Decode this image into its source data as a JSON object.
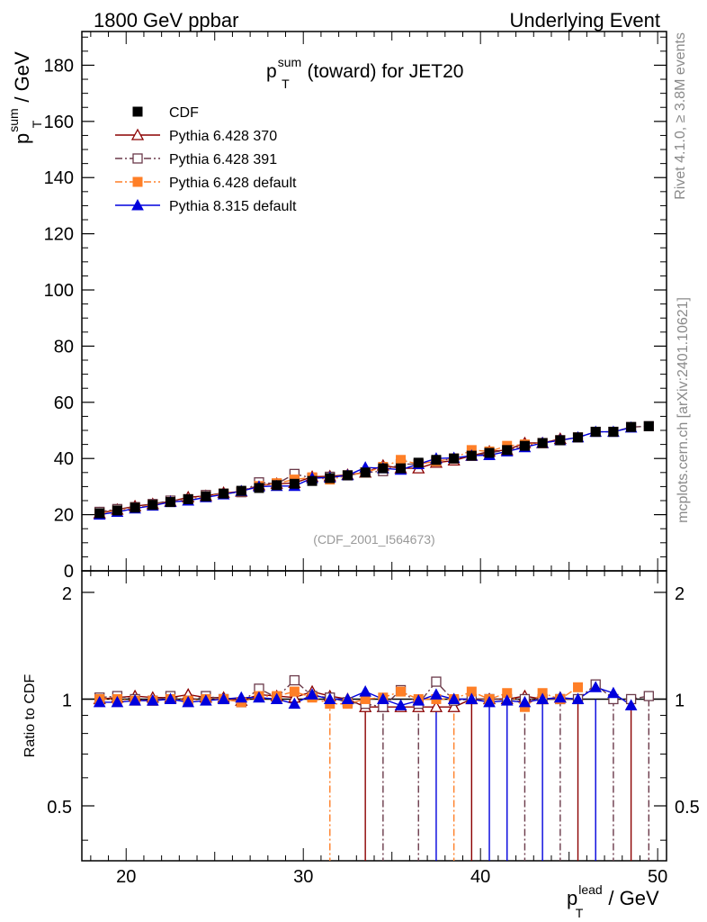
{
  "header": {
    "left": "1800 GeV ppbar",
    "right": "Underlying Event"
  },
  "side_label_top": "Rivet 4.1.0, ≥ 3.8M events",
  "side_label_bottom": "mcplots.cern.ch [arXiv:2401.10621]",
  "watermark": "(CDF_2001_I564673)",
  "chart_data": [
    {
      "type": "scatter",
      "title": "pT sum (toward) for JET20",
      "title_parts": {
        "base": "p",
        "sup": "sum",
        "sub": "T",
        "rest": " (toward) for JET20"
      },
      "ylabel": "pT sum / GeV",
      "ylabel_parts": {
        "base": "p",
        "sup": "sum",
        "sub": "T",
        "rest": " / GeV"
      },
      "xlim": [
        17.5,
        50.5
      ],
      "ylim": [
        0,
        192
      ],
      "yticks": [
        {
          "value": 0,
          "label": "0"
        },
        {
          "value": 20,
          "label": "20"
        },
        {
          "value": 40,
          "label": "40"
        },
        {
          "value": 60,
          "label": "60"
        },
        {
          "value": 80,
          "label": "80"
        },
        {
          "value": 100,
          "label": "100"
        },
        {
          "value": 120,
          "label": "120"
        },
        {
          "value": 140,
          "label": "140"
        },
        {
          "value": 160,
          "label": "160"
        },
        {
          "value": 180,
          "label": "180"
        }
      ],
      "legend_position": "top-left",
      "series": [
        {
          "name": "CDF",
          "color": "#000000",
          "marker": "square-filled",
          "line": "none",
          "x": [
            18.5,
            19.5,
            20.5,
            21.5,
            22.5,
            23.5,
            24.5,
            25.5,
            26.5,
            27.5,
            28.5,
            29.5,
            30.5,
            31.5,
            32.5,
            33.5,
            34.5,
            35.5,
            36.5,
            37.5,
            38.5,
            39.5,
            40.5,
            41.5,
            42.5,
            43.5,
            44.5,
            45.5,
            46.5,
            47.5,
            48.5,
            49.5
          ],
          "values": [
            20.5,
            21.5,
            22.5,
            23.5,
            24.5,
            25.5,
            26.5,
            27.5,
            28.5,
            29.5,
            30.5,
            31,
            32,
            33,
            34,
            35,
            36.5,
            36.5,
            38.5,
            39.5,
            40,
            41,
            42,
            43,
            44.5,
            45.5,
            46.5,
            47.5,
            49.5,
            49.5,
            51.2,
            51.5
          ]
        },
        {
          "name": "Pythia 6.428 370",
          "color": "#8b0000",
          "marker": "triangle-open",
          "line": "solid",
          "x": [
            18.5,
            19.5,
            20.5,
            21.5,
            22.5,
            23.5,
            24.5,
            25.5,
            26.5,
            27.5,
            28.5,
            29.5,
            30.5,
            31.5,
            32.5,
            33.5,
            34.5,
            35.5,
            36.5,
            37.5,
            38.5,
            39.5,
            40.5,
            41.5,
            42.5,
            43.5,
            44.5
          ],
          "values": [
            20.5,
            21.8,
            23,
            23.8,
            24.7,
            26.2,
            26.7,
            27.8,
            28.2,
            30.5,
            31,
            31.3,
            33.5,
            33.7,
            34.2,
            35,
            37.5,
            36.5,
            36.5,
            38.5,
            39.3,
            41,
            42.5,
            43,
            45.5,
            45.5,
            47
          ],
          "ratio": [
            1.0,
            1.01,
            1.02,
            1.01,
            1.01,
            1.03,
            1.01,
            1.01,
            0.99,
            1.03,
            1.02,
            1.01,
            1.05,
            1.02,
            1.0,
            0.95,
            0.95,
            0.95,
            0.95,
            0.95,
            0.95,
            1.0,
            1.0,
            1.0,
            1.02,
            1.0,
            1.01
          ]
        },
        {
          "name": "Pythia 6.428 391",
          "color": "#6b3a4a",
          "marker": "square-open",
          "line": "dashdot",
          "x": [
            18.5,
            19.5,
            20.5,
            21.5,
            22.5,
            23.5,
            24.5,
            25.5,
            26.5,
            27.5,
            28.5,
            29.5,
            30.5,
            31.5,
            32.5,
            33.5,
            34.5,
            35.5,
            36.5,
            37.5,
            38.5,
            39.5,
            40.5,
            41.5,
            42.5,
            43.5,
            44.5,
            45.5,
            46.5,
            47.5,
            48.5,
            49.5
          ],
          "values": [
            21,
            22,
            22.7,
            23.8,
            25,
            25.5,
            27,
            27.5,
            28,
            31.5,
            31,
            34.5,
            33,
            33.5,
            34,
            35,
            35.5,
            38,
            38,
            39,
            40,
            41,
            42,
            43,
            44.5,
            45.5,
            46.5,
            47.5,
            49.5,
            49.5,
            51.2,
            51.5
          ],
          "ratio": [
            1.01,
            1.02,
            1.0,
            0.99,
            1.02,
            0.99,
            1.02,
            1.0,
            0.98,
            1.07,
            1.01,
            1.13,
            1.02,
            1.01,
            0.98,
            0.97,
            0.95,
            1.06,
            0.97,
            1.12,
            0.99,
            1.0,
            1.0,
            1.0,
            1.0,
            1.0,
            1.0,
            1.0,
            1.1,
            1.0,
            1.0,
            1.02
          ]
        },
        {
          "name": "Pythia 6.428 default",
          "color": "#ff7f27",
          "marker": "square-filled",
          "line": "dashdot",
          "x": [
            18.5,
            19.5,
            20.5,
            21.5,
            22.5,
            23.5,
            24.5,
            25.5,
            26.5,
            27.5,
            28.5,
            29.5,
            30.5,
            31.5,
            32.5,
            33.5,
            34.5,
            35.5,
            36.5,
            37.5,
            38.5,
            39.5,
            40.5,
            41.5,
            42.5,
            43.5,
            44.5,
            45.5
          ],
          "values": [
            20.5,
            21.5,
            22.5,
            23.5,
            24.5,
            25.5,
            26.5,
            27.5,
            28.3,
            30.2,
            31.2,
            32.5,
            33.3,
            32.5,
            34,
            35,
            37,
            39.5,
            38,
            39,
            40,
            43,
            42.5,
            44.5,
            45,
            45.5,
            46.5,
            47.5
          ],
          "ratio": [
            1.0,
            1.0,
            0.99,
            0.99,
            1.0,
            0.99,
            1.0,
            1.0,
            0.98,
            1.02,
            1.02,
            1.05,
            1.01,
            0.97,
            0.97,
            1.0,
            1.01,
            1.05,
            1.0,
            1.0,
            1.0,
            1.05,
            1.0,
            1.04,
            0.95,
            1.04,
            1.0,
            1.08
          ]
        },
        {
          "name": "Pythia 8.315 default",
          "color": "#0000dd",
          "marker": "triangle-filled",
          "line": "solid",
          "x": [
            18.5,
            19.5,
            20.5,
            21.5,
            22.5,
            23.5,
            24.5,
            25.5,
            26.5,
            27.5,
            28.5,
            29.5,
            30.5,
            31.5,
            32.5,
            33.5,
            34.5,
            35.5,
            36.5,
            37.5,
            38.5,
            39.5,
            40.5,
            41.5,
            42.5,
            43.5,
            44.5,
            45.5,
            46.5,
            47.5,
            48.5
          ],
          "values": [
            20,
            21,
            22.2,
            23.2,
            24.5,
            25,
            26.2,
            27.2,
            28.4,
            30,
            30.2,
            30.2,
            33,
            33.2,
            34,
            36.8,
            36.5,
            36,
            38,
            40,
            40.2,
            41,
            41.2,
            42.5,
            44,
            45.5,
            46.5,
            47.5,
            49.5,
            49.5,
            51
          ],
          "ratio": [
            0.98,
            0.98,
            0.99,
            0.99,
            1.0,
            0.98,
            0.99,
            1.0,
            1.01,
            1.01,
            1.0,
            0.97,
            1.03,
            1.0,
            1.0,
            1.05,
            1.0,
            0.96,
            0.99,
            1.03,
            1.0,
            1.0,
            0.98,
            0.99,
            0.98,
            1.0,
            1.01,
            1.0,
            1.08,
            1.04,
            0.96
          ]
        }
      ]
    },
    {
      "type": "scatter",
      "ylabel": "Ratio to CDF",
      "xlabel": "pT lead / GeV",
      "xlabel_parts": {
        "base": "p",
        "sup": "lead",
        "sub": "T",
        "rest": " / GeV"
      },
      "xlim": [
        17.5,
        50.5
      ],
      "ylim": [
        0.35,
        2.3
      ],
      "yscale": "log",
      "yticks": [
        {
          "value": 0.5,
          "label": "0.5"
        },
        {
          "value": 1,
          "label": "1"
        },
        {
          "value": 2,
          "label": "2"
        }
      ],
      "xticks": [
        {
          "value": 20,
          "label": "20"
        },
        {
          "value": 30,
          "label": "30"
        },
        {
          "value": 40,
          "label": "40"
        },
        {
          "value": 50,
          "label": "50"
        }
      ],
      "reference_line": 1
    }
  ]
}
